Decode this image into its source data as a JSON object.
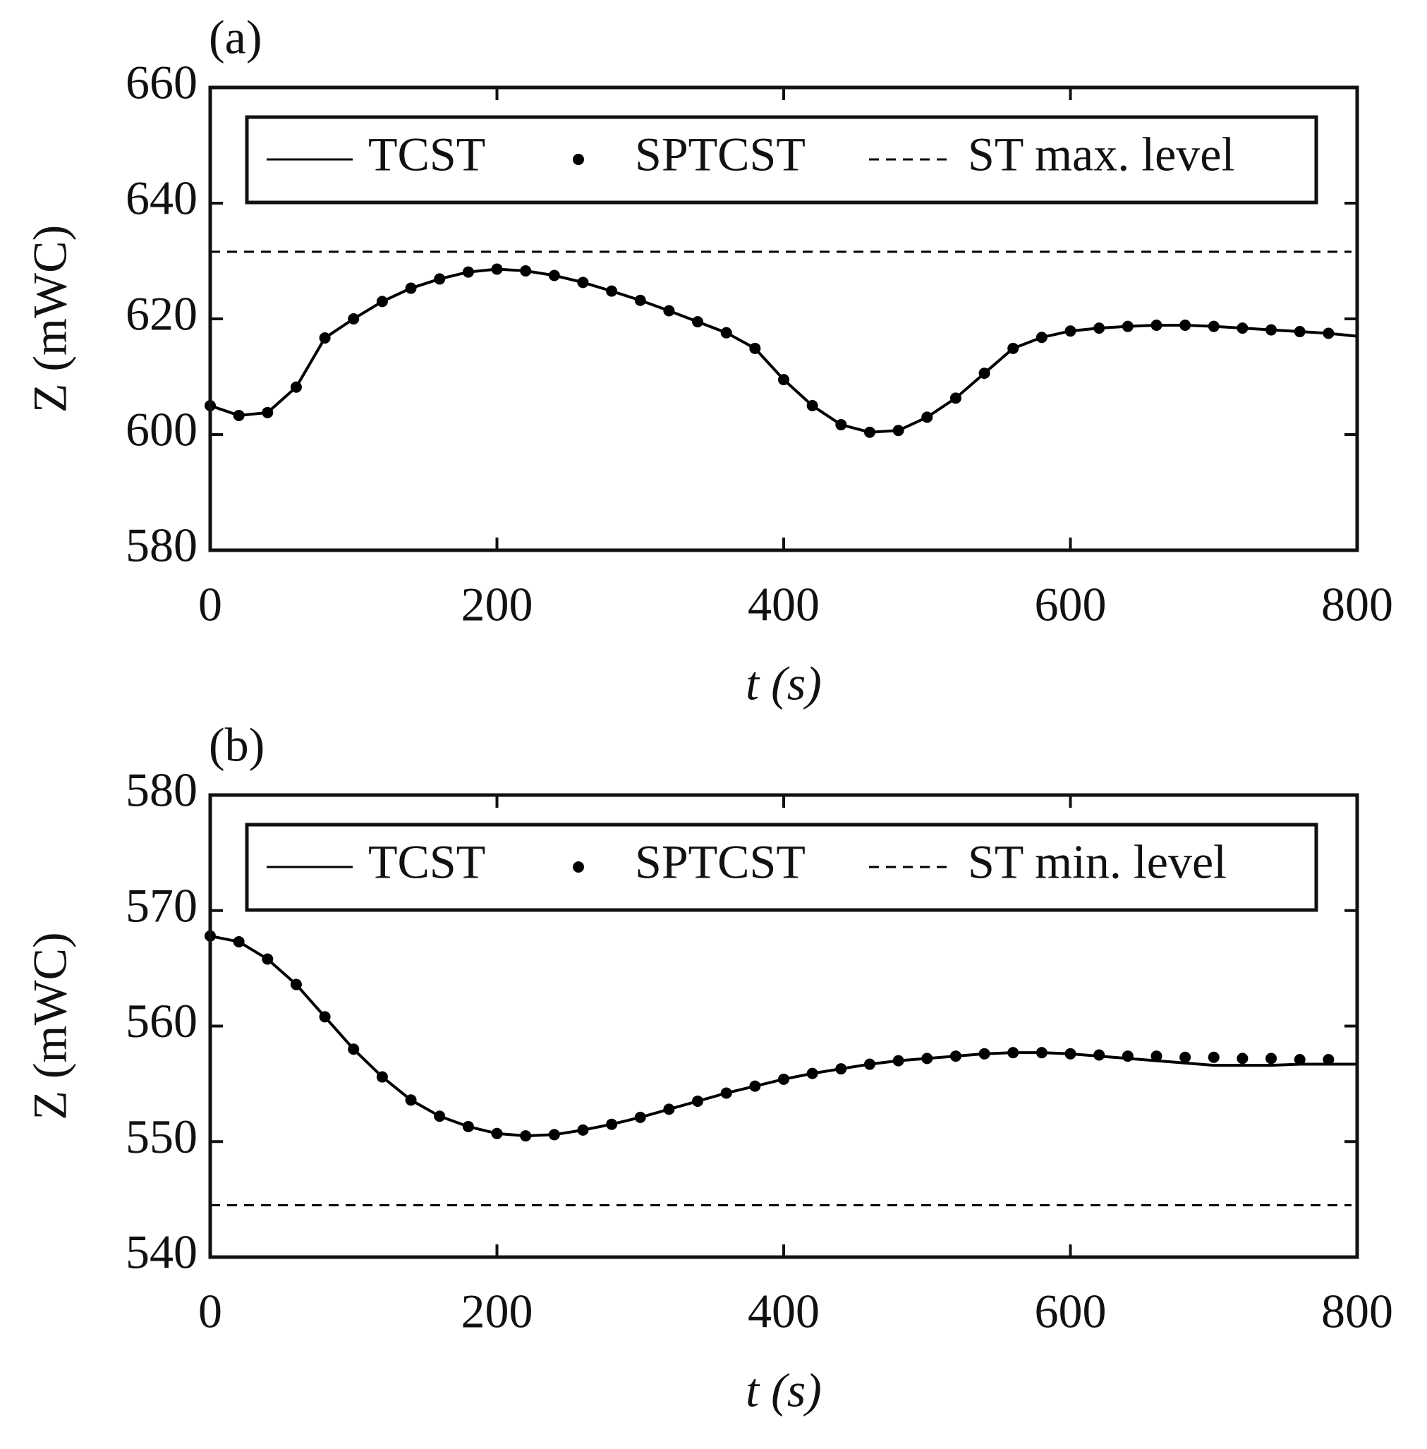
{
  "chart_data": [
    {
      "type": "line",
      "panel_label": "(a)",
      "xlabel": "t (s)",
      "ylabel": "Z (mWC)",
      "xlim": [
        0,
        800
      ],
      "xticks": [
        0,
        200,
        400,
        600,
        800
      ],
      "ylim": [
        580,
        660
      ],
      "yticks": [
        580,
        600,
        620,
        640,
        660
      ],
      "series": [
        {
          "name": "TCST",
          "color": "#000000",
          "style": "line",
          "x": [
            0,
            20,
            40,
            60,
            80,
            100,
            120,
            140,
            160,
            180,
            200,
            220,
            240,
            260,
            280,
            300,
            320,
            340,
            360,
            380,
            400,
            420,
            440,
            460,
            480,
            500,
            520,
            540,
            560,
            580,
            600,
            620,
            640,
            660,
            680,
            700,
            720,
            740,
            760,
            780,
            800
          ],
          "values": [
            605,
            603.3,
            603.8,
            608.2,
            616.7,
            620,
            623,
            625.3,
            626.9,
            628.1,
            628.6,
            628.3,
            627.5,
            626.3,
            624.8,
            623.2,
            621.4,
            619.5,
            617.6,
            614.9,
            609.5,
            605,
            601.7,
            600.4,
            600.7,
            603,
            606.3,
            610.6,
            614.9,
            616.8,
            617.9,
            618.4,
            618.7,
            618.9,
            618.9,
            618.7,
            618.4,
            618.1,
            617.8,
            617.5,
            617
          ]
        },
        {
          "name": "SPTCST",
          "color": "#000000",
          "style": "markers",
          "x": [
            0,
            20,
            40,
            60,
            80,
            100,
            120,
            140,
            160,
            180,
            200,
            220,
            240,
            260,
            280,
            300,
            320,
            340,
            360,
            380,
            400,
            420,
            440,
            460,
            480,
            500,
            520,
            540,
            560,
            580,
            600,
            620,
            640,
            660,
            680,
            700,
            720,
            740,
            760,
            780
          ],
          "values": [
            605,
            603.3,
            603.8,
            608.2,
            616.7,
            620,
            623,
            625.3,
            626.9,
            628.1,
            628.6,
            628.3,
            627.5,
            626.3,
            624.8,
            623.2,
            621.4,
            619.5,
            617.6,
            614.9,
            609.5,
            605,
            601.7,
            600.4,
            600.7,
            603,
            606.3,
            610.6,
            614.9,
            616.8,
            617.9,
            618.4,
            618.7,
            618.9,
            618.9,
            618.7,
            618.4,
            618.1,
            617.8,
            617.5
          ]
        }
      ],
      "hline": {
        "name": "ST max. level",
        "value": 631.6,
        "color": "#000000",
        "style": "dashed"
      }
    },
    {
      "type": "line",
      "panel_label": "(b)",
      "xlabel": "t (s)",
      "ylabel": "Z (mWC)",
      "xlim": [
        0,
        800
      ],
      "xticks": [
        0,
        200,
        400,
        600,
        800
      ],
      "ylim": [
        540,
        580
      ],
      "yticks": [
        540,
        550,
        560,
        570,
        580
      ],
      "series": [
        {
          "name": "TCST",
          "color": "#000000",
          "style": "line",
          "x": [
            0,
            20,
            40,
            60,
            80,
            100,
            120,
            140,
            160,
            180,
            200,
            220,
            240,
            260,
            280,
            300,
            320,
            340,
            360,
            380,
            400,
            420,
            440,
            460,
            480,
            500,
            520,
            540,
            560,
            580,
            600,
            620,
            640,
            660,
            680,
            700,
            720,
            740,
            760,
            780,
            800
          ],
          "values": [
            567.8,
            567.3,
            565.8,
            563.6,
            560.8,
            558,
            555.6,
            553.6,
            552.2,
            551.3,
            550.7,
            550.5,
            550.6,
            551,
            551.5,
            552.1,
            552.8,
            553.5,
            554.2,
            554.8,
            555.4,
            555.9,
            556.3,
            556.7,
            557,
            557.2,
            557.4,
            557.6,
            557.7,
            557.7,
            557.6,
            557.4,
            557.2,
            557,
            556.8,
            556.6,
            556.6,
            556.6,
            556.7,
            556.7,
            556.7
          ]
        },
        {
          "name": "SPTCST",
          "color": "#000000",
          "style": "markers",
          "x": [
            0,
            20,
            40,
            60,
            80,
            100,
            120,
            140,
            160,
            180,
            200,
            220,
            240,
            260,
            280,
            300,
            320,
            340,
            360,
            380,
            400,
            420,
            440,
            460,
            480,
            500,
            520,
            540,
            560,
            580,
            600,
            620,
            640,
            660,
            680,
            700,
            720,
            740,
            760,
            780
          ],
          "values": [
            567.8,
            567.3,
            565.8,
            563.6,
            560.8,
            558,
            555.6,
            553.6,
            552.2,
            551.3,
            550.7,
            550.5,
            550.6,
            551,
            551.5,
            552.1,
            552.8,
            553.5,
            554.2,
            554.8,
            555.4,
            555.9,
            556.3,
            556.7,
            557,
            557.2,
            557.4,
            557.6,
            557.7,
            557.7,
            557.6,
            557.5,
            557.4,
            557.4,
            557.3,
            557.3,
            557.2,
            557.2,
            557.1,
            557.1
          ]
        }
      ],
      "hline": {
        "name": "ST min. level",
        "value": 544.5,
        "color": "#000000",
        "style": "dashed"
      }
    }
  ]
}
